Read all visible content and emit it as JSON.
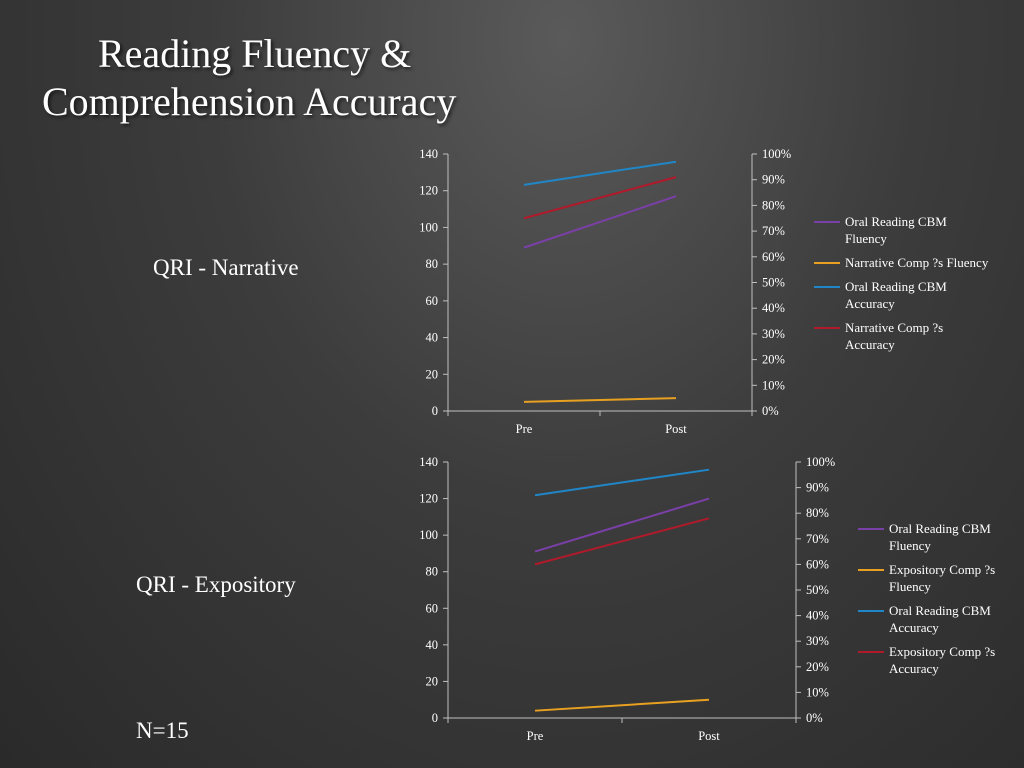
{
  "title": {
    "line1": "Reading Fluency &",
    "line2": "Comprehension Accuracy"
  },
  "labels": {
    "narrative": "QRI - Narrative",
    "expository": "QRI - Expository",
    "n": "N=15"
  },
  "colors": {
    "purple": "#7b3fa8",
    "orange": "#e8a020",
    "blue": "#1f86c8",
    "red": "#b01a2a",
    "axis": "#bfbfbf"
  },
  "chart_data": [
    {
      "type": "line",
      "name": "QRI - Narrative",
      "categories": [
        "Pre",
        "Post"
      ],
      "left_axis": {
        "ylim": [
          0,
          140
        ],
        "ticks": [
          "0",
          "20",
          "40",
          "60",
          "80",
          "100",
          "120",
          "140"
        ]
      },
      "right_axis": {
        "ylim": [
          0,
          100
        ],
        "ticks": [
          "0%",
          "10%",
          "20%",
          "30%",
          "40%",
          "50%",
          "60%",
          "70%",
          "80%",
          "90%",
          "100%"
        ]
      },
      "series": [
        {
          "name": "Oral Reading CBM Fluency",
          "legend_lines": [
            "Oral Reading CBM",
            "Fluency"
          ],
          "axis": "left",
          "color": "purple",
          "values": [
            89,
            117
          ]
        },
        {
          "name": "Narrative Comp ?s Fluency",
          "legend_lines": [
            "Narrative Comp ?s Fluency"
          ],
          "axis": "left",
          "color": "orange",
          "values": [
            5,
            7
          ]
        },
        {
          "name": "Oral Reading CBM Accuracy",
          "legend_lines": [
            "Oral Reading CBM",
            "Accuracy"
          ],
          "axis": "right",
          "color": "blue",
          "values": [
            88,
            97
          ]
        },
        {
          "name": "Narrative Comp ?s Accuracy",
          "legend_lines": [
            "Narrative Comp ?s",
            "Accuracy"
          ],
          "axis": "right",
          "color": "red",
          "values": [
            75,
            91
          ]
        }
      ]
    },
    {
      "type": "line",
      "name": "QRI - Expository",
      "categories": [
        "Pre",
        "Post"
      ],
      "left_axis": {
        "ylim": [
          0,
          140
        ],
        "ticks": [
          "0",
          "20",
          "40",
          "60",
          "80",
          "100",
          "120",
          "140"
        ]
      },
      "right_axis": {
        "ylim": [
          0,
          100
        ],
        "ticks": [
          "0%",
          "10%",
          "20%",
          "30%",
          "40%",
          "50%",
          "60%",
          "70%",
          "80%",
          "90%",
          "100%"
        ]
      },
      "series": [
        {
          "name": "Oral Reading CBM Fluency",
          "legend_lines": [
            "Oral Reading CBM",
            "Fluency"
          ],
          "axis": "left",
          "color": "purple",
          "values": [
            91,
            120
          ]
        },
        {
          "name": "Expository Comp ?s Fluency",
          "legend_lines": [
            "Expository Comp ?s",
            "Fluency"
          ],
          "axis": "left",
          "color": "orange",
          "values": [
            4,
            10
          ]
        },
        {
          "name": "Oral Reading CBM Accuracy",
          "legend_lines": [
            "Oral Reading CBM",
            "Accuracy"
          ],
          "axis": "right",
          "color": "blue",
          "values": [
            87,
            97
          ]
        },
        {
          "name": "Expository Comp ?s Accuracy",
          "legend_lines": [
            "Expository Comp ?s",
            "Accuracy"
          ],
          "axis": "right",
          "color": "red",
          "values": [
            60,
            78
          ]
        }
      ]
    }
  ]
}
